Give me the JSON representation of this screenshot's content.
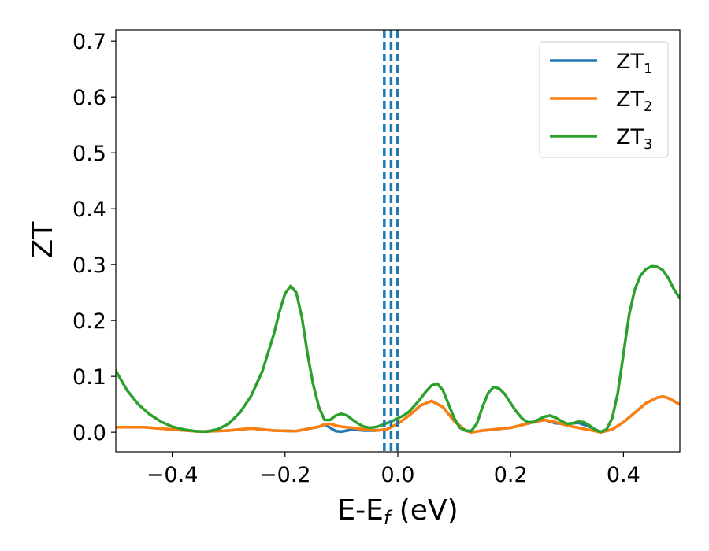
{
  "chart_data": {
    "type": "line",
    "xlabel": "E-E",
    "xlabel_sub": "f",
    "xlabel_unit": " (eV)",
    "ylabel": "ZT",
    "xlim": [
      -0.5,
      0.5
    ],
    "ylim": [
      -0.035,
      0.72
    ],
    "x_ticks": [
      -0.4,
      -0.2,
      0.0,
      0.2,
      0.4
    ],
    "x_tick_labels": [
      "−0.4",
      "−0.2",
      "0.0",
      "0.2",
      "0.4"
    ],
    "y_ticks": [
      0.0,
      0.1,
      0.2,
      0.3,
      0.4,
      0.5,
      0.6,
      0.7
    ],
    "y_tick_labels": [
      "0.0",
      "0.1",
      "0.2",
      "0.3",
      "0.4",
      "0.5",
      "0.6",
      "0.7"
    ],
    "grid": false,
    "legend_position": "top-right",
    "series": [
      {
        "name": "ZT",
        "sub": "1",
        "color": "#1f77b4",
        "x": [
          -0.5,
          -0.45,
          -0.4,
          -0.35,
          -0.3,
          -0.26,
          -0.22,
          -0.18,
          -0.14,
          -0.13,
          -0.12,
          -0.11,
          -0.1,
          -0.08,
          -0.06,
          -0.04,
          -0.02,
          0.0,
          0.02,
          0.04,
          0.06,
          0.08,
          0.1,
          0.12,
          0.13,
          0.15,
          0.2,
          0.24,
          0.26,
          0.28,
          0.3,
          0.32,
          0.34,
          0.36,
          0.38,
          0.4,
          0.42,
          0.44,
          0.46,
          0.47,
          0.48,
          0.5
        ],
        "y": [
          0.009,
          0.009,
          0.005,
          0.001,
          0.003,
          0.007,
          0.003,
          0.002,
          0.01,
          0.014,
          0.008,
          0.002,
          0.001,
          0.005,
          0.003,
          0.003,
          0.005,
          0.015,
          0.03,
          0.048,
          0.056,
          0.045,
          0.02,
          0.003,
          0.0,
          0.003,
          0.008,
          0.018,
          0.022,
          0.016,
          0.015,
          0.017,
          0.01,
          0.0,
          0.005,
          0.018,
          0.035,
          0.052,
          0.062,
          0.064,
          0.061,
          0.05
        ]
      },
      {
        "name": "ZT",
        "sub": "2",
        "color": "#ff7f0e",
        "x": [
          -0.5,
          -0.45,
          -0.4,
          -0.35,
          -0.3,
          -0.26,
          -0.22,
          -0.18,
          -0.14,
          -0.13,
          -0.12,
          -0.11,
          -0.1,
          -0.08,
          -0.06,
          -0.04,
          -0.02,
          0.0,
          0.02,
          0.04,
          0.06,
          0.08,
          0.1,
          0.12,
          0.13,
          0.15,
          0.2,
          0.24,
          0.26,
          0.28,
          0.3,
          0.32,
          0.34,
          0.36,
          0.38,
          0.4,
          0.42,
          0.44,
          0.46,
          0.47,
          0.48,
          0.5
        ],
        "y": [
          0.009,
          0.009,
          0.005,
          0.001,
          0.003,
          0.007,
          0.003,
          0.002,
          0.01,
          0.014,
          0.015,
          0.012,
          0.01,
          0.008,
          0.005,
          0.003,
          0.005,
          0.015,
          0.03,
          0.048,
          0.056,
          0.045,
          0.02,
          0.003,
          0.0,
          0.003,
          0.008,
          0.018,
          0.022,
          0.018,
          0.012,
          0.008,
          0.004,
          0.0,
          0.005,
          0.018,
          0.035,
          0.052,
          0.062,
          0.064,
          0.061,
          0.05
        ]
      },
      {
        "name": "ZT",
        "sub": "3",
        "color": "#2ca02c",
        "x": [
          -0.5,
          -0.48,
          -0.46,
          -0.44,
          -0.42,
          -0.4,
          -0.38,
          -0.36,
          -0.34,
          -0.32,
          -0.3,
          -0.28,
          -0.26,
          -0.24,
          -0.22,
          -0.21,
          -0.2,
          -0.19,
          -0.18,
          -0.17,
          -0.16,
          -0.15,
          -0.14,
          -0.13,
          -0.12,
          -0.11,
          -0.1,
          -0.09,
          -0.08,
          -0.07,
          -0.06,
          -0.05,
          -0.04,
          -0.03,
          -0.02,
          -0.01,
          0.0,
          0.01,
          0.02,
          0.03,
          0.04,
          0.05,
          0.06,
          0.07,
          0.08,
          0.09,
          0.1,
          0.11,
          0.12,
          0.13,
          0.14,
          0.15,
          0.16,
          0.17,
          0.18,
          0.19,
          0.2,
          0.21,
          0.22,
          0.23,
          0.24,
          0.25,
          0.26,
          0.27,
          0.28,
          0.29,
          0.3,
          0.31,
          0.32,
          0.33,
          0.34,
          0.35,
          0.36,
          0.37,
          0.38,
          0.39,
          0.4,
          0.41,
          0.42,
          0.43,
          0.44,
          0.45,
          0.46,
          0.47,
          0.48,
          0.49,
          0.5
        ],
        "y": [
          0.11,
          0.075,
          0.05,
          0.032,
          0.019,
          0.01,
          0.005,
          0.002,
          0.001,
          0.005,
          0.015,
          0.035,
          0.065,
          0.11,
          0.175,
          0.215,
          0.248,
          0.262,
          0.25,
          0.205,
          0.14,
          0.085,
          0.045,
          0.022,
          0.022,
          0.03,
          0.033,
          0.03,
          0.022,
          0.015,
          0.01,
          0.008,
          0.009,
          0.012,
          0.016,
          0.02,
          0.025,
          0.03,
          0.037,
          0.048,
          0.06,
          0.073,
          0.084,
          0.087,
          0.075,
          0.05,
          0.025,
          0.008,
          0.003,
          0.002,
          0.015,
          0.045,
          0.07,
          0.081,
          0.078,
          0.068,
          0.052,
          0.037,
          0.025,
          0.018,
          0.018,
          0.023,
          0.028,
          0.03,
          0.026,
          0.02,
          0.015,
          0.016,
          0.019,
          0.018,
          0.012,
          0.004,
          0.001,
          0.005,
          0.025,
          0.07,
          0.14,
          0.21,
          0.255,
          0.28,
          0.292,
          0.297,
          0.296,
          0.29,
          0.275,
          0.255,
          0.24
        ]
      }
    ],
    "vlines": [
      {
        "x": 0.0,
        "color": "#000000",
        "style": "dashed"
      },
      {
        "x": 0.0,
        "color": "#1f77b4",
        "style": "dashed"
      },
      {
        "x": -0.012,
        "color": "#1f77b4",
        "style": "dashed"
      },
      {
        "x": -0.024,
        "color": "#1f77b4",
        "style": "dashed"
      }
    ]
  }
}
